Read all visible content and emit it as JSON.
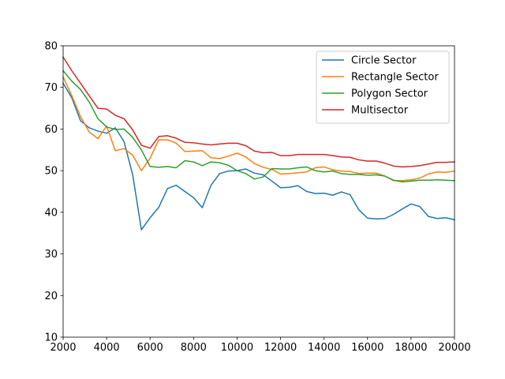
{
  "chart_data": {
    "type": "line",
    "title": "",
    "xlabel": "",
    "ylabel": "",
    "xlim": [
      2000,
      20000
    ],
    "ylim": [
      10,
      80
    ],
    "x_ticks": [
      2000,
      4000,
      6000,
      8000,
      10000,
      12000,
      14000,
      16000,
      18000,
      20000
    ],
    "y_ticks": [
      10,
      20,
      30,
      40,
      50,
      60,
      70,
      80
    ],
    "grid": false,
    "legend_position": "top-right",
    "x": [
      2000,
      2400,
      2800,
      3200,
      3600,
      4000,
      4400,
      4800,
      5200,
      5600,
      6000,
      6400,
      6800,
      7200,
      7600,
      8000,
      8400,
      8800,
      9200,
      9600,
      10000,
      10400,
      10800,
      11200,
      11600,
      12000,
      12400,
      12800,
      13200,
      13600,
      14000,
      14400,
      14800,
      15200,
      15600,
      16000,
      16400,
      16800,
      17200,
      17600,
      18000,
      18400,
      18800,
      19200,
      19600,
      20000
    ],
    "series": [
      {
        "name": "Circle Sector",
        "color": "#1f77b4",
        "values": [
          71.0,
          67.5,
          62.0,
          60.3,
          59.5,
          59.0,
          60.3,
          57.0,
          49.0,
          35.8,
          38.7,
          41.2,
          45.7,
          46.5,
          45.0,
          43.5,
          41.1,
          46.5,
          49.3,
          49.9,
          50.0,
          50.4,
          49.4,
          49.0,
          47.5,
          45.9,
          46.0,
          46.4,
          45.0,
          44.5,
          44.6,
          44.1,
          44.9,
          44.2,
          40.6,
          38.6,
          38.4,
          38.5,
          39.5,
          40.8,
          42.0,
          41.4,
          39.0,
          38.5,
          38.7,
          38.2
        ]
      },
      {
        "name": "Rectangle Sector",
        "color": "#ff7f0e",
        "values": [
          72.5,
          68.0,
          63.0,
          59.3,
          57.7,
          60.7,
          54.8,
          55.3,
          53.7,
          50.0,
          53.0,
          57.4,
          57.4,
          56.6,
          54.6,
          54.7,
          54.8,
          53.1,
          52.9,
          53.5,
          54.2,
          53.3,
          51.7,
          50.8,
          50.3,
          49.2,
          49.3,
          49.5,
          49.7,
          50.7,
          50.9,
          50.2,
          49.9,
          49.8,
          49.3,
          49.4,
          49.4,
          48.7,
          47.6,
          47.6,
          47.8,
          48.2,
          49.2,
          49.7,
          49.6,
          49.9
        ]
      },
      {
        "name": "Polygon Sector",
        "color": "#2ca02c",
        "values": [
          74.0,
          71.5,
          69.5,
          66.5,
          62.5,
          60.5,
          59.9,
          60.0,
          58.0,
          55.0,
          51.0,
          50.8,
          51.0,
          50.7,
          52.4,
          52.1,
          51.2,
          52.1,
          51.9,
          51.3,
          50.0,
          49.3,
          48.0,
          48.5,
          50.5,
          50.4,
          50.4,
          50.7,
          50.9,
          50.0,
          49.7,
          49.9,
          49.3,
          49.1,
          49.1,
          48.9,
          49.0,
          48.7,
          47.7,
          47.3,
          47.5,
          47.7,
          47.7,
          47.8,
          47.7,
          47.6
        ]
      },
      {
        "name": "Multisector",
        "color": "#d62728",
        "values": [
          77.3,
          74.0,
          71.0,
          68.0,
          65.0,
          64.8,
          63.3,
          62.5,
          59.8,
          56.1,
          55.4,
          58.2,
          58.4,
          57.8,
          56.8,
          56.7,
          56.4,
          56.2,
          56.4,
          56.6,
          56.6,
          56.0,
          54.7,
          54.3,
          54.4,
          53.6,
          53.6,
          53.9,
          53.9,
          53.9,
          53.9,
          53.6,
          53.3,
          53.2,
          52.6,
          52.3,
          52.3,
          51.8,
          51.1,
          50.9,
          51.0,
          51.2,
          51.6,
          52.0,
          52.0,
          52.1
        ]
      }
    ]
  }
}
